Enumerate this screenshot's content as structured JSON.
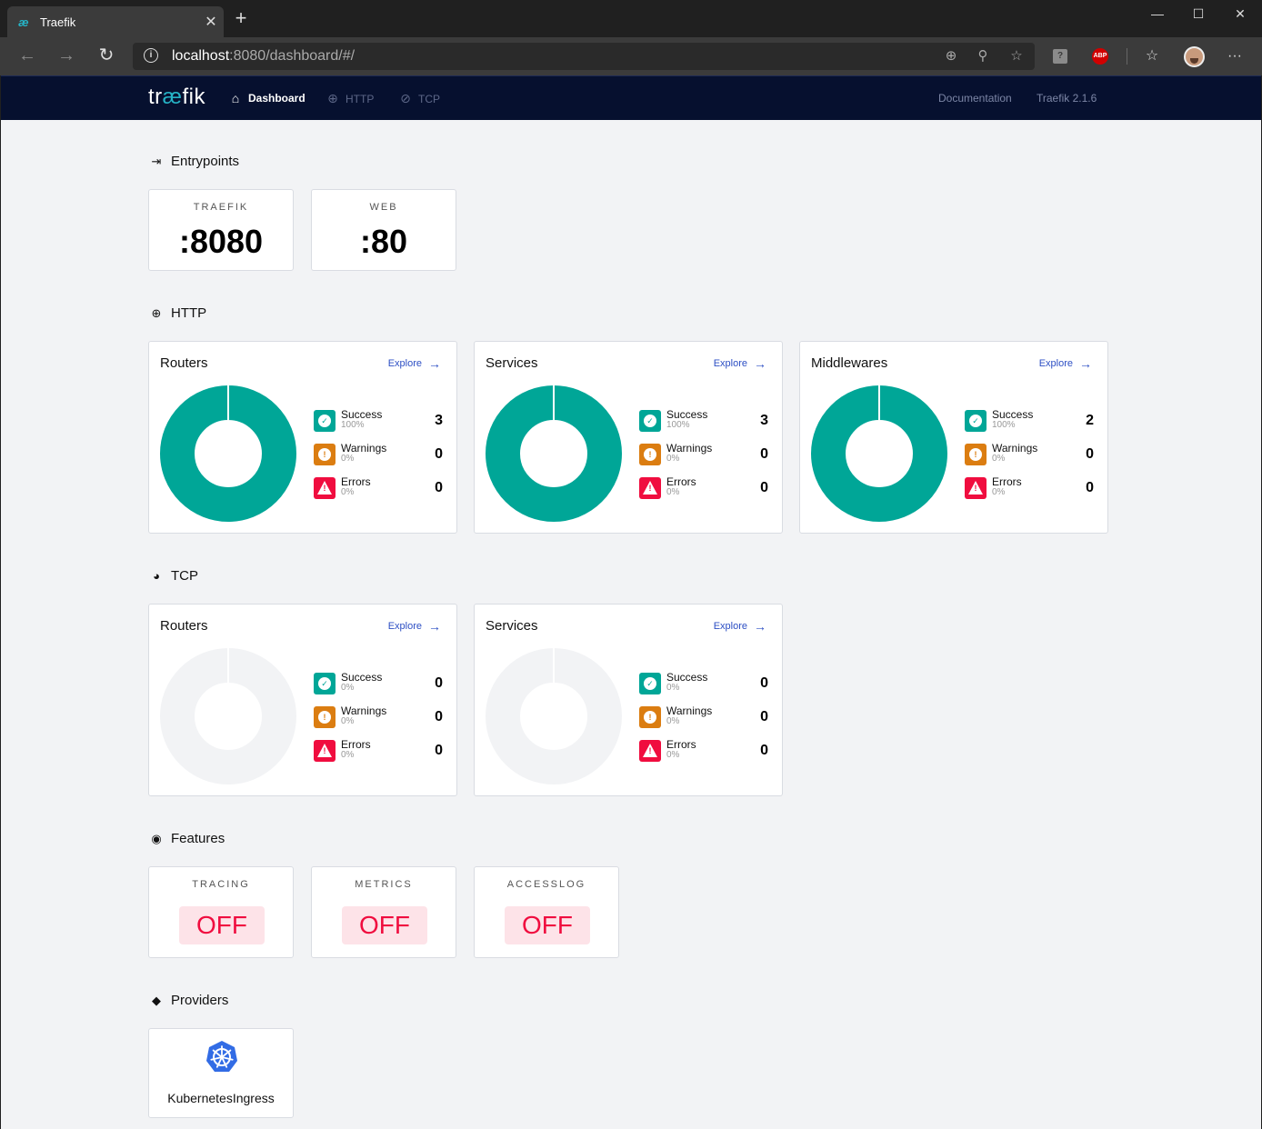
{
  "browser": {
    "tab_title": "Traefik",
    "tab_favicon": "æ",
    "url_host": "localhost",
    "url_rest": ":8080/dashboard/#/",
    "icons": [
      "back-icon",
      "forward-icon",
      "refresh-icon",
      "info-icon",
      "add-icon",
      "zoom-icon",
      "star-icon",
      "help-extension-icon",
      "adblock-extension-icon",
      "favorites-icon",
      "profile-avatar",
      "more-icon"
    ],
    "abp_label": "ABP",
    "help_label": "?"
  },
  "nav": {
    "logo_pre": "tr",
    "logo_ae": "æ",
    "logo_post": "fik",
    "dashboard": "Dashboard",
    "http": "HTTP",
    "tcp": "TCP",
    "documentation": "Documentation",
    "version": "Traefik 2.1.6"
  },
  "entrypoints": {
    "title": "Entrypoints",
    "items": [
      {
        "label": "TRAEFIK",
        "port": ":8080"
      },
      {
        "label": "WEB",
        "port": ":80"
      }
    ]
  },
  "http": {
    "title": "HTTP",
    "cards": [
      {
        "title": "Routers",
        "explore": "Explore",
        "success": {
          "label": "Success",
          "pct": "100%",
          "count": "3"
        },
        "warnings": {
          "label": "Warnings",
          "pct": "0%",
          "count": "0"
        },
        "errors": {
          "label": "Errors",
          "pct": "0%",
          "count": "0"
        }
      },
      {
        "title": "Services",
        "explore": "Explore",
        "success": {
          "label": "Success",
          "pct": "100%",
          "count": "3"
        },
        "warnings": {
          "label": "Warnings",
          "pct": "0%",
          "count": "0"
        },
        "errors": {
          "label": "Errors",
          "pct": "0%",
          "count": "0"
        }
      },
      {
        "title": "Middlewares",
        "explore": "Explore",
        "success": {
          "label": "Success",
          "pct": "100%",
          "count": "2"
        },
        "warnings": {
          "label": "Warnings",
          "pct": "0%",
          "count": "0"
        },
        "errors": {
          "label": "Errors",
          "pct": "0%",
          "count": "0"
        }
      }
    ]
  },
  "tcp": {
    "title": "TCP",
    "cards": [
      {
        "title": "Routers",
        "explore": "Explore",
        "success": {
          "label": "Success",
          "pct": "0%",
          "count": "0"
        },
        "warnings": {
          "label": "Warnings",
          "pct": "0%",
          "count": "0"
        },
        "errors": {
          "label": "Errors",
          "pct": "0%",
          "count": "0"
        }
      },
      {
        "title": "Services",
        "explore": "Explore",
        "success": {
          "label": "Success",
          "pct": "0%",
          "count": "0"
        },
        "warnings": {
          "label": "Warnings",
          "pct": "0%",
          "count": "0"
        },
        "errors": {
          "label": "Errors",
          "pct": "0%",
          "count": "0"
        }
      }
    ]
  },
  "features": {
    "title": "Features",
    "items": [
      {
        "label": "TRACING",
        "value": "OFF"
      },
      {
        "label": "METRICS",
        "value": "OFF"
      },
      {
        "label": "ACCESSLOG",
        "value": "OFF"
      }
    ]
  },
  "providers": {
    "title": "Providers",
    "items": [
      {
        "name": "KubernetesIngress",
        "icon": "kubernetes-icon"
      }
    ]
  },
  "colors": {
    "success": "#00a697",
    "warning": "#db7d11",
    "error": "#f00d3f",
    "empty_donut": "#f2f3f5",
    "nav_bg": "#06102f",
    "link": "#2d4fc4"
  }
}
